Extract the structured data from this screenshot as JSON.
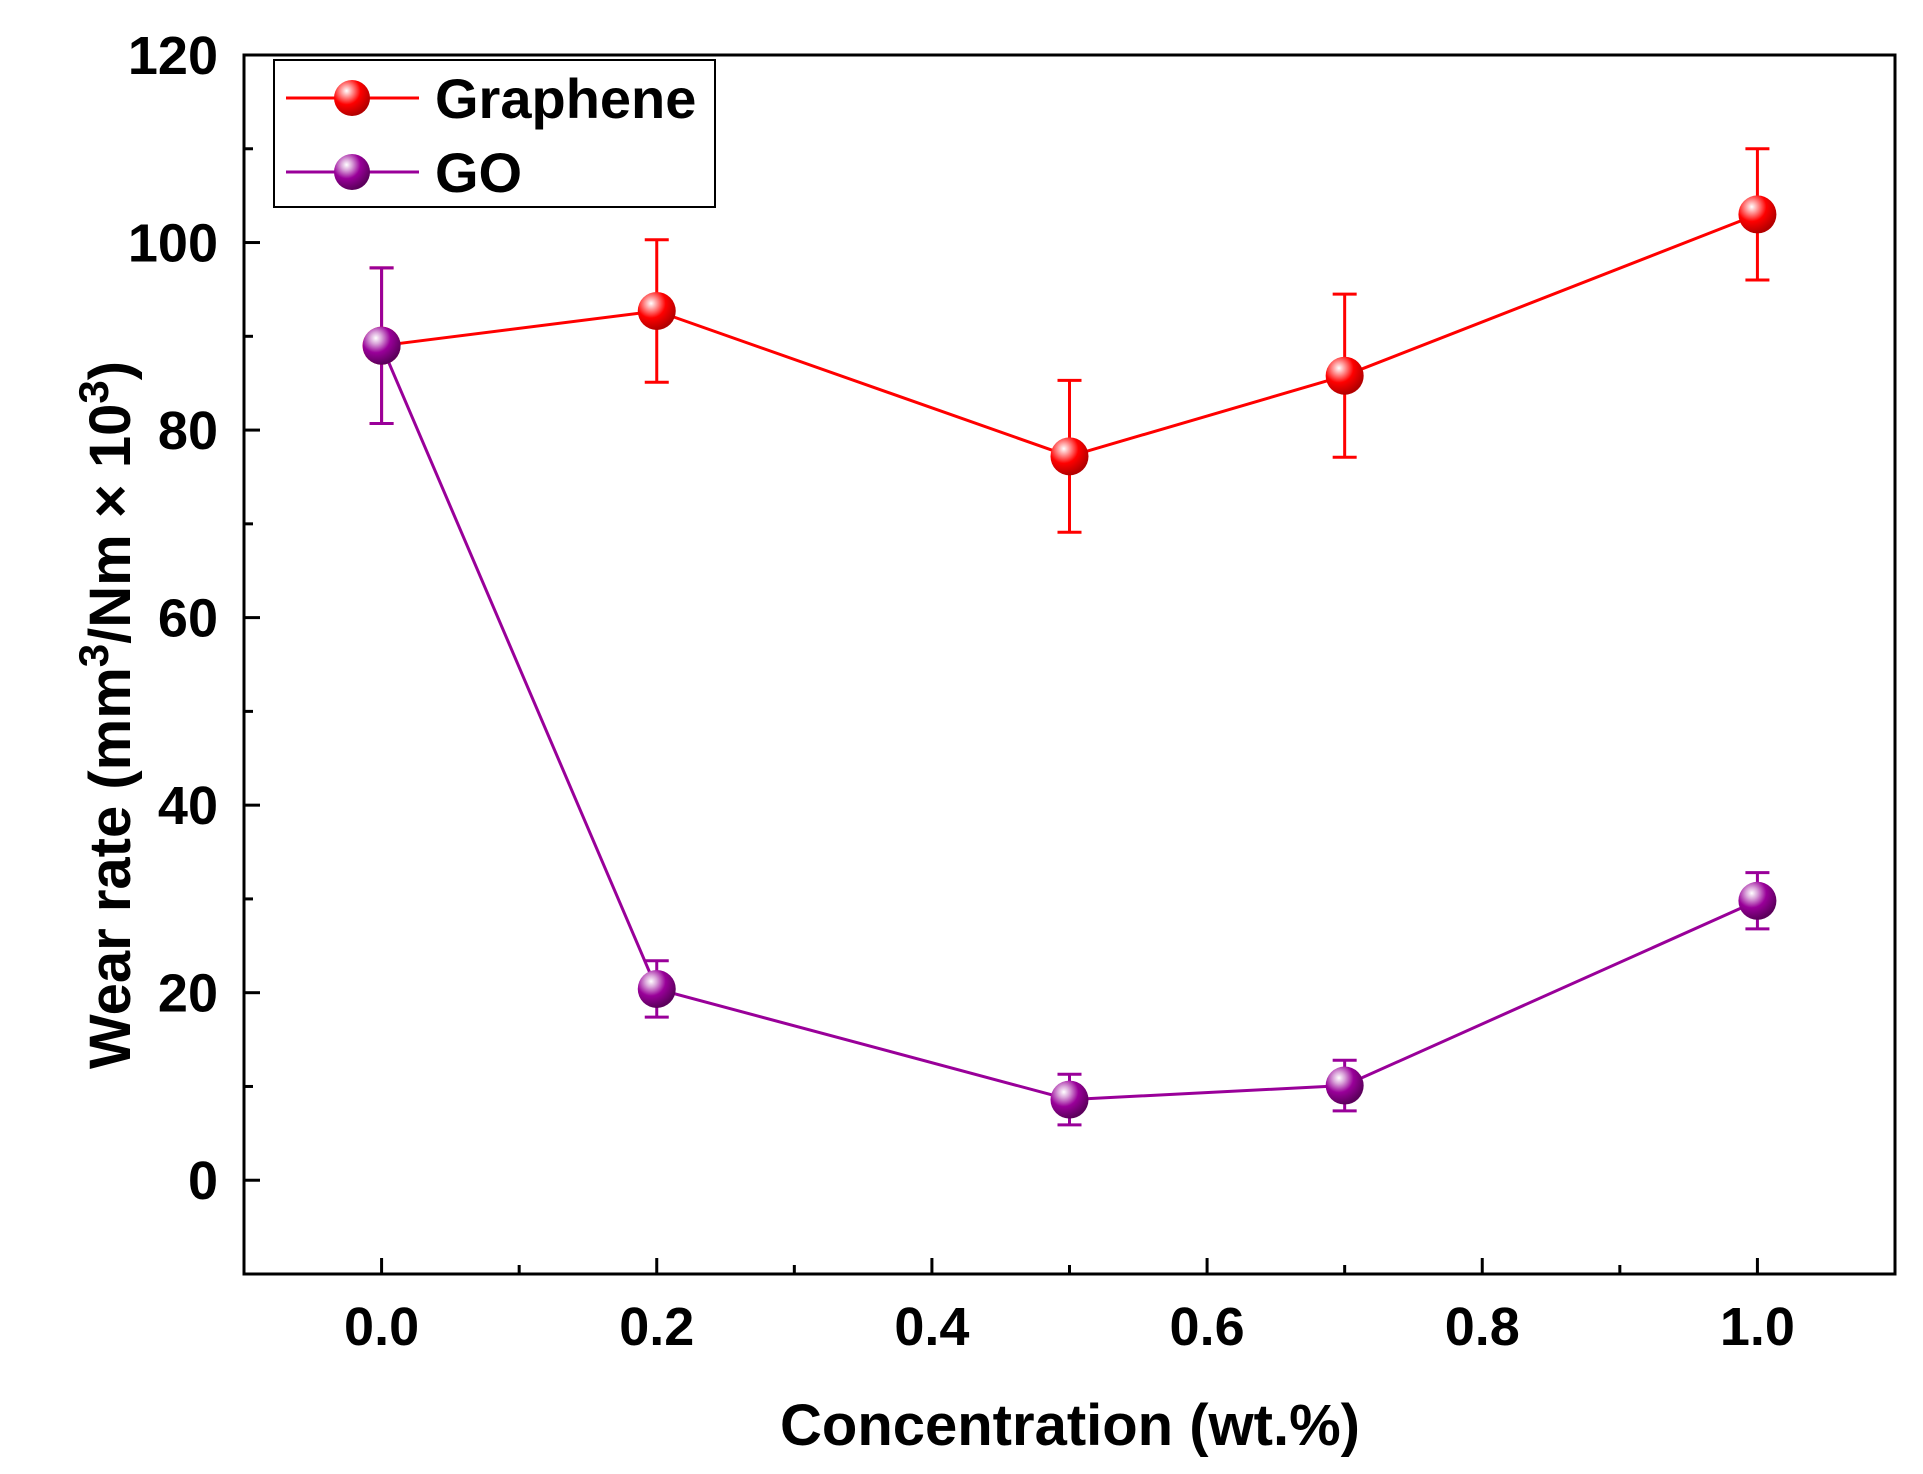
{
  "chart_data": {
    "type": "line",
    "title": "",
    "xlabel": "Concentration (wt.%)",
    "ylabel": {
      "prefix": "Wear rate (mm",
      "sup1": "3",
      "middle": "/Nm × 10",
      "sup2": "3",
      "suffix": ")"
    },
    "xlim": [
      -0.1,
      1.1
    ],
    "ylim": [
      -10,
      120
    ],
    "x_ticks": [
      0.0,
      0.2,
      0.4,
      0.6,
      0.8,
      1.0
    ],
    "x_tick_labels": [
      "0.0",
      "0.2",
      "0.4",
      "0.6",
      "0.8",
      "1.0"
    ],
    "x_minor_ticks": [
      0.1,
      0.3,
      0.5,
      0.7,
      0.9
    ],
    "y_ticks": [
      0,
      20,
      40,
      60,
      80,
      100,
      120
    ],
    "y_tick_labels": [
      "0",
      "20",
      "40",
      "60",
      "80",
      "100",
      "120"
    ],
    "y_minor_ticks": [
      -10,
      10,
      30,
      50,
      70,
      90,
      110
    ],
    "grid": false,
    "legend_position": "top-left",
    "series": [
      {
        "name": "Graphene",
        "color": "#ff0000",
        "x": [
          0.0,
          0.2,
          0.5,
          0.7,
          1.0
        ],
        "y": [
          89,
          92.7,
          77.2,
          85.8,
          103
        ],
        "err": [
          8.3,
          7.6,
          8.1,
          8.7,
          7
        ]
      },
      {
        "name": "GO",
        "color": "#990099",
        "x": [
          0.0,
          0.2,
          0.5,
          0.7,
          1.0
        ],
        "y": [
          89,
          20.4,
          8.6,
          10.1,
          29.8
        ],
        "err": [
          8.3,
          3,
          2.7,
          2.7,
          3
        ]
      }
    ]
  }
}
